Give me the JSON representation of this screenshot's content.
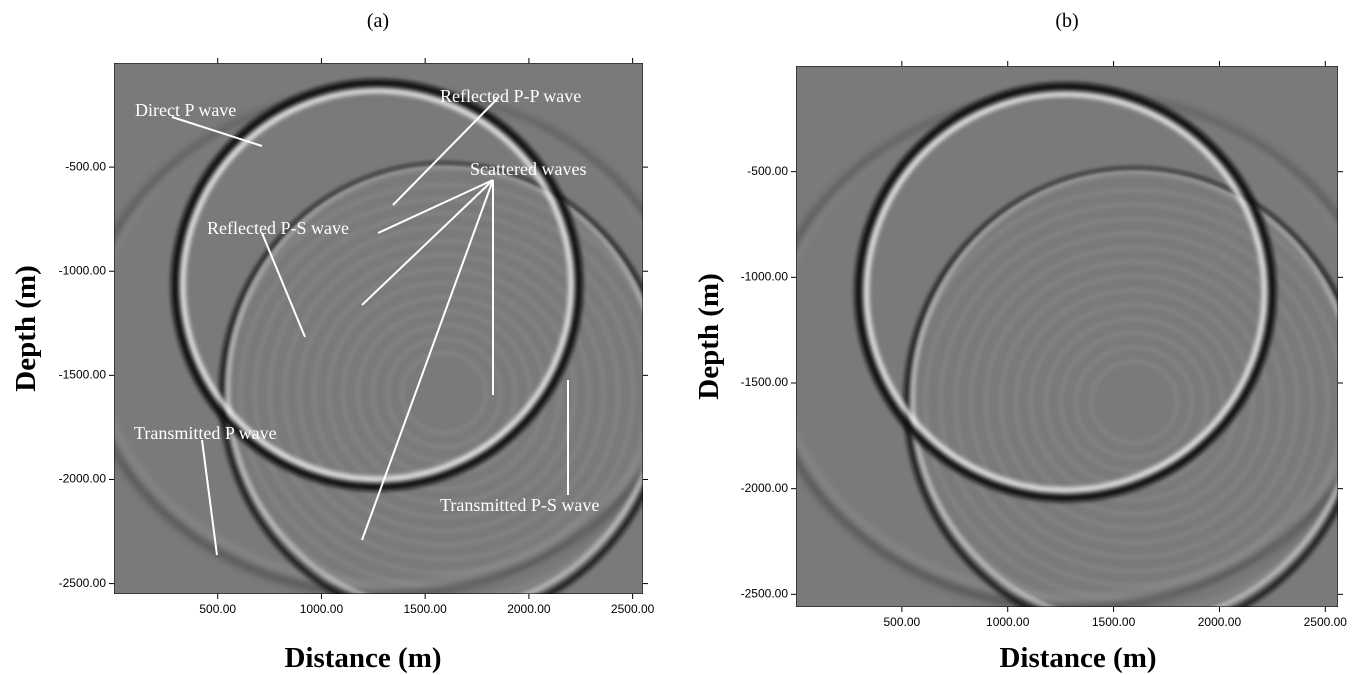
{
  "chart_data": [
    {
      "type": "image",
      "title": "(a)",
      "x_label": "Distance (m)",
      "y_label": "Depth (m)",
      "xlim": [
        0,
        2550
      ],
      "ylim": [
        -2550,
        0
      ],
      "xticks": [
        {
          "value": 500,
          "label": "500.00"
        },
        {
          "value": 1000,
          "label": "1000.00"
        },
        {
          "value": 1500,
          "label": "1500.00"
        },
        {
          "value": 2000,
          "label": "2000.00"
        },
        {
          "value": 2500,
          "label": "2500.00"
        }
      ],
      "yticks": [
        {
          "value": -500,
          "label": "-500.00"
        },
        {
          "value": -1000,
          "label": "-1000.00"
        },
        {
          "value": -1500,
          "label": "-1500.00"
        },
        {
          "value": -2000,
          "label": "-2000.00"
        },
        {
          "value": -2500,
          "label": "-2500.00"
        }
      ],
      "annotations": [
        "Direct P wave",
        "Reflected P-P wave",
        "Scattered waves",
        "Reflected P-S wave",
        "Transmitted P wave",
        "Transmitted P-S wave"
      ]
    },
    {
      "type": "image",
      "title": "(b)",
      "x_label": "Distance (m)",
      "y_label": "Depth (m)",
      "xlim": [
        0,
        2560
      ],
      "ylim": [
        -2560,
        0
      ],
      "xticks": [
        {
          "value": 500,
          "label": "500.00"
        },
        {
          "value": 1000,
          "label": "1000.00"
        },
        {
          "value": 1500,
          "label": "1500.00"
        },
        {
          "value": 2000,
          "label": "2000.00"
        },
        {
          "value": 2500,
          "label": "2500.00"
        }
      ],
      "yticks": [
        {
          "value": -500,
          "label": "-500.00"
        },
        {
          "value": -1000,
          "label": "-1000.00"
        },
        {
          "value": -1500,
          "label": "-1500.00"
        },
        {
          "value": -2000,
          "label": "-2000.00"
        },
        {
          "value": -2500,
          "label": "-2500.00"
        }
      ]
    }
  ]
}
